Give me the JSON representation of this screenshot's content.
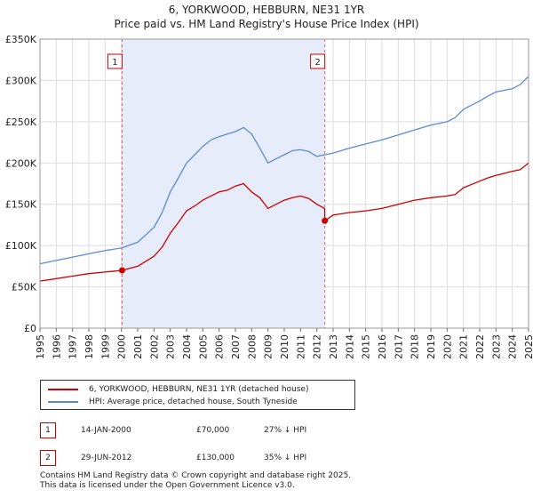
{
  "header": {
    "title_line1": "6, YORKWOOD, HEBBURN, NE31 1YR",
    "title_line2": "Price paid vs. HM Land Registry's House Price Index (HPI)"
  },
  "chart_data": {
    "type": "line",
    "title": "6, YORKWOOD, HEBBURN, NE31 1YR — Price paid vs. HM Land Registry's House Price Index (HPI)",
    "xlim": [
      1995,
      2025
    ],
    "ylim": [
      0,
      350000
    ],
    "y_ticks": [
      0,
      50000,
      100000,
      150000,
      200000,
      250000,
      300000,
      350000
    ],
    "y_tick_labels": [
      "£0",
      "£50K",
      "£100K",
      "£150K",
      "£200K",
      "£250K",
      "£300K",
      "£350K"
    ],
    "x_ticks": [
      "1995",
      "1996",
      "1997",
      "1998",
      "1999",
      "2000",
      "2001",
      "2002",
      "2003",
      "2004",
      "2005",
      "2006",
      "2007",
      "2008",
      "2009",
      "2010",
      "2011",
      "2012",
      "2013",
      "2014",
      "2015",
      "2016",
      "2017",
      "2018",
      "2019",
      "2020",
      "2021",
      "2022",
      "2023",
      "2024",
      "2025"
    ],
    "grid": true,
    "shaded_range": [
      2000.04,
      2012.49
    ],
    "series": [
      {
        "name": "6, YORKWOOD, HEBBURN, NE31 1YR (detached house)",
        "color": "#cc0000",
        "x": [
          1995.0,
          1996.0,
          1997.0,
          1998.0,
          1999.0,
          2000.04,
          2001.0,
          2002.0,
          2002.5,
          2003.0,
          2003.5,
          2004.0,
          2004.5,
          2005.0,
          2005.5,
          2006.0,
          2006.5,
          2007.0,
          2007.5,
          2008.0,
          2008.5,
          2009.0,
          2009.5,
          2010.0,
          2010.5,
          2011.0,
          2011.5,
          2012.0,
          2012.48,
          2012.49,
          2013.0,
          2014.0,
          2015.0,
          2016.0,
          2017.0,
          2018.0,
          2019.0,
          2020.0,
          2020.5,
          2021.0,
          2022.0,
          2022.5,
          2023.0,
          2024.0,
          2024.5,
          2025.0
        ],
        "y": [
          57000,
          60000,
          63000,
          66000,
          68000,
          70000,
          75000,
          87000,
          98000,
          115000,
          128000,
          142000,
          148000,
          155000,
          160000,
          165000,
          167000,
          172000,
          175000,
          165000,
          158000,
          145000,
          150000,
          155000,
          158000,
          160000,
          157000,
          150000,
          145000,
          130000,
          137000,
          140000,
          142000,
          145000,
          150000,
          155000,
          158000,
          160000,
          162000,
          170000,
          178000,
          182000,
          185000,
          190000,
          192000,
          200000
        ]
      },
      {
        "name": "HPI: Average price, detached house, South Tyneside",
        "color": "#5b8bd0",
        "x": [
          1995.0,
          1996.0,
          1997.0,
          1998.0,
          1999.0,
          2000.0,
          2001.0,
          2002.0,
          2002.5,
          2003.0,
          2003.5,
          2004.0,
          2004.5,
          2005.0,
          2005.5,
          2006.0,
          2006.5,
          2007.0,
          2007.5,
          2008.0,
          2008.5,
          2009.0,
          2009.5,
          2010.0,
          2010.5,
          2011.0,
          2011.5,
          2012.0,
          2012.5,
          2013.0,
          2014.0,
          2015.0,
          2016.0,
          2017.0,
          2018.0,
          2019.0,
          2020.0,
          2020.5,
          2021.0,
          2022.0,
          2022.5,
          2023.0,
          2024.0,
          2024.5,
          2025.0
        ],
        "y": [
          78000,
          82000,
          86000,
          90000,
          94000,
          97000,
          104000,
          122000,
          140000,
          165000,
          182000,
          200000,
          210000,
          220000,
          228000,
          232000,
          235000,
          238000,
          243000,
          235000,
          218000,
          200000,
          205000,
          210000,
          215000,
          216000,
          214000,
          208000,
          210000,
          212000,
          218000,
          223000,
          228000,
          234000,
          240000,
          246000,
          250000,
          255000,
          265000,
          275000,
          281000,
          286000,
          290000,
          295000,
          305000
        ]
      }
    ],
    "annotations": [
      {
        "label": "1",
        "x": 2000.04,
        "y": 70000
      },
      {
        "label": "2",
        "x": 2012.49,
        "y": 130000
      }
    ]
  },
  "legend": {
    "items": [
      {
        "label": "6, YORKWOOD, HEBBURN, NE31 1YR (detached house)",
        "color": "#cc0000"
      },
      {
        "label": "HPI: Average price, detached house, South Tyneside",
        "color": "#5b8bd0"
      }
    ]
  },
  "transactions": [
    {
      "num": "1",
      "date": "14-JAN-2000",
      "price": "£70,000",
      "hpi": "27% ↓ HPI"
    },
    {
      "num": "2",
      "date": "29-JUN-2012",
      "price": "£130,000",
      "hpi": "35% ↓ HPI"
    }
  ],
  "footer": {
    "line1": "Contains HM Land Registry data © Crown copyright and database right 2025.",
    "line2": "This data is licensed under the Open Government Licence v3.0."
  }
}
